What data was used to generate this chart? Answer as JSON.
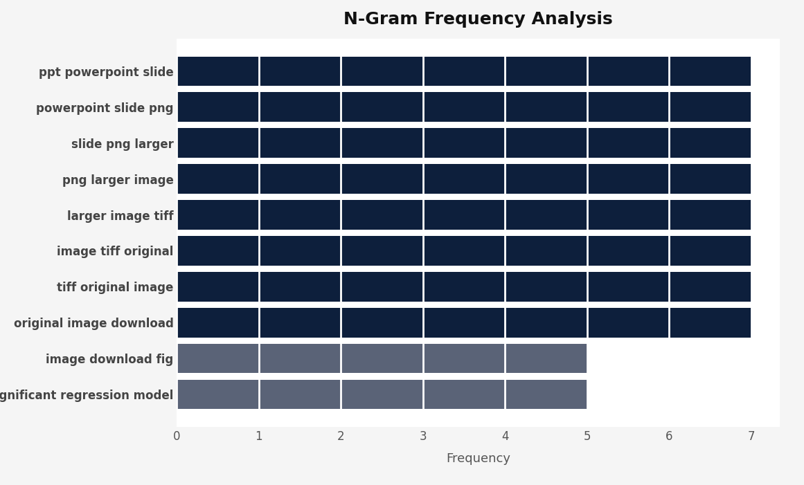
{
  "title": "N-Gram Frequency Analysis",
  "xlabel": "Frequency",
  "categories": [
    "significant regression model",
    "image download fig",
    "original image download",
    "tiff original image",
    "image tiff original",
    "larger image tiff",
    "png larger image",
    "slide png larger",
    "powerpoint slide png",
    "ppt powerpoint slide"
  ],
  "values": [
    5,
    5,
    7,
    7,
    7,
    7,
    7,
    7,
    7,
    7
  ],
  "bar_colors": [
    "#5a6377",
    "#5a6377",
    "#0d1f3c",
    "#0d1f3c",
    "#0d1f3c",
    "#0d1f3c",
    "#0d1f3c",
    "#0d1f3c",
    "#0d1f3c",
    "#0d1f3c"
  ],
  "xlim": [
    0,
    7.35
  ],
  "xticks": [
    0,
    1,
    2,
    3,
    4,
    5,
    6,
    7
  ],
  "plot_bg_color": "#ffffff",
  "fig_bg_color": "#f5f5f5",
  "bar_height": 0.82,
  "title_fontsize": 18,
  "label_fontsize": 13,
  "tick_fontsize": 12,
  "ytick_fontsize": 12,
  "title_fontweight": "bold"
}
